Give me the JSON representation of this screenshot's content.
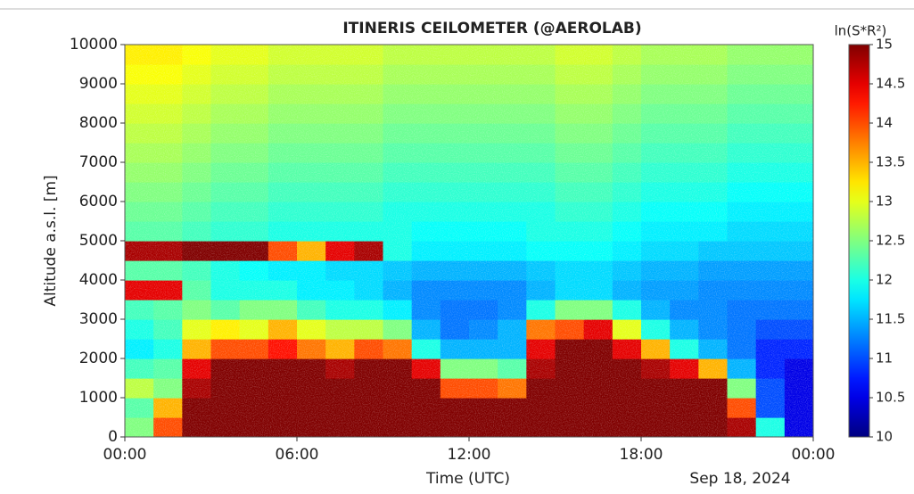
{
  "chart_data": {
    "type": "heatmap",
    "title": "ITINERIS CEILOMETER (@AEROLAB)",
    "x_label": "Time (UTC)",
    "y_label": "Altitude a.s.l. [m]",
    "annotation": "Sep 18, 2024",
    "colorbar_label": "ln(S*R²)",
    "colormap": "jet",
    "clim": [
      10,
      15
    ],
    "cticks": [
      10,
      10.5,
      11,
      11.5,
      12,
      12.5,
      13,
      13.5,
      14,
      14.5,
      15
    ],
    "xlim": [
      0,
      24
    ],
    "xticks": [
      {
        "value": 0,
        "label": "00:00"
      },
      {
        "value": 6,
        "label": "06:00"
      },
      {
        "value": 12,
        "label": "12:00"
      },
      {
        "value": 18,
        "label": "18:00"
      },
      {
        "value": 24,
        "label": "00:00"
      }
    ],
    "ylim": [
      0,
      10000
    ],
    "yticks": [
      0,
      1000,
      2000,
      3000,
      4000,
      5000,
      6000,
      7000,
      8000,
      9000,
      10000
    ],
    "x": [
      0.5,
      1.5,
      2.5,
      3.5,
      4.5,
      5.5,
      6.5,
      7.5,
      8.5,
      9.5,
      10.5,
      11.5,
      12.5,
      13.5,
      14.5,
      15.5,
      16.5,
      17.5,
      18.5,
      19.5,
      20.5,
      21.5,
      22.5,
      23.5
    ],
    "y": [
      250,
      750,
      1250,
      1750,
      2250,
      2750,
      3250,
      3750,
      4250,
      4750,
      5250,
      5750,
      6250,
      6750,
      7250,
      7750,
      8250,
      8750,
      9250,
      9750
    ],
    "z": [
      [
        12.5,
        14,
        15,
        15,
        15,
        15,
        15,
        15,
        15,
        15,
        15,
        15,
        15,
        15,
        15,
        15,
        15,
        15,
        15,
        15,
        15,
        14.8,
        12,
        10.5
      ],
      [
        12.3,
        13.5,
        15,
        15,
        15,
        15,
        15,
        15,
        15,
        15,
        15,
        15,
        15,
        15,
        15,
        15,
        15,
        15,
        15,
        15,
        15,
        14,
        11,
        10.5
      ],
      [
        12.8,
        12.5,
        14.8,
        15,
        15,
        15,
        15,
        15,
        15,
        15,
        15,
        14,
        14,
        13.8,
        15,
        15,
        15,
        15,
        15,
        15,
        15,
        12.5,
        11,
        10.5
      ],
      [
        12.2,
        12.3,
        14.5,
        15,
        15,
        15,
        15,
        14.8,
        15,
        15,
        14.5,
        12.5,
        12.5,
        12.3,
        14.8,
        15,
        15,
        15,
        14.8,
        14.5,
        13.5,
        11.5,
        10.8,
        10.5
      ],
      [
        11.8,
        12,
        13.5,
        14,
        14,
        14.3,
        13.8,
        13.5,
        14,
        13.8,
        12,
        11.5,
        11.5,
        11.5,
        14.5,
        15,
        15,
        14.5,
        13.5,
        12,
        11.5,
        11.2,
        10.8,
        10.8
      ],
      [
        12,
        12.2,
        13,
        13.2,
        13,
        13.5,
        13,
        12.8,
        12.8,
        12.5,
        11.5,
        11.2,
        11.3,
        11.5,
        13.8,
        14,
        14.5,
        13,
        12,
        11.5,
        11.3,
        11.2,
        11,
        11
      ],
      [
        12.2,
        12.3,
        12.5,
        12.3,
        12.5,
        12.5,
        12.2,
        12,
        12,
        11.8,
        11.3,
        11.2,
        11.2,
        11.3,
        12,
        12.5,
        12.5,
        12,
        11.5,
        11.3,
        11.3,
        11.2,
        11.2,
        11.2
      ],
      [
        14.5,
        14.5,
        12.3,
        12,
        12,
        12,
        11.8,
        11.8,
        11.7,
        11.5,
        11.3,
        11.3,
        11.3,
        11.3,
        11.5,
        11.7,
        11.7,
        11.5,
        11.4,
        11.4,
        11.3,
        11.3,
        11.3,
        11.3
      ],
      [
        12.3,
        12.3,
        12.2,
        12,
        11.9,
        11.8,
        11.8,
        11.7,
        11.7,
        11.6,
        11.5,
        11.5,
        11.5,
        11.5,
        11.6,
        11.7,
        11.7,
        11.6,
        11.5,
        11.5,
        11.4,
        11.4,
        11.4,
        11.4
      ],
      [
        14.8,
        14.8,
        15,
        15,
        15,
        14,
        13.5,
        14.5,
        14.8,
        12,
        11.8,
        11.8,
        11.8,
        11.8,
        11.9,
        11.9,
        11.9,
        11.8,
        11.7,
        11.7,
        11.6,
        11.6,
        11.6,
        11.6
      ],
      [
        12.3,
        12.3,
        12.2,
        12.1,
        12.1,
        12,
        12,
        12,
        12,
        12,
        11.9,
        11.9,
        11.9,
        11.9,
        12,
        12,
        12,
        11.9,
        11.8,
        11.8,
        11.8,
        11.7,
        11.7,
        11.7
      ],
      [
        12.4,
        12.4,
        12.3,
        12.2,
        12.2,
        12.1,
        12.1,
        12.1,
        12.1,
        12,
        12,
        12,
        12,
        12,
        12,
        12.1,
        12.1,
        12,
        11.9,
        11.9,
        11.9,
        11.8,
        11.8,
        11.8
      ],
      [
        12.5,
        12.5,
        12.4,
        12.3,
        12.3,
        12.2,
        12.2,
        12.2,
        12.2,
        12.1,
        12.1,
        12.1,
        12.1,
        12.1,
        12.1,
        12.2,
        12.2,
        12.1,
        12,
        12,
        12,
        11.9,
        11.9,
        11.9
      ],
      [
        12.6,
        12.6,
        12.5,
        12.4,
        12.4,
        12.3,
        12.3,
        12.3,
        12.3,
        12.2,
        12.2,
        12.2,
        12.2,
        12.2,
        12.2,
        12.3,
        12.3,
        12.2,
        12.1,
        12.1,
        12.1,
        12,
        12,
        12
      ],
      [
        12.7,
        12.7,
        12.6,
        12.5,
        12.5,
        12.4,
        12.4,
        12.4,
        12.4,
        12.3,
        12.3,
        12.3,
        12.3,
        12.3,
        12.3,
        12.4,
        12.4,
        12.3,
        12.2,
        12.2,
        12.2,
        12.1,
        12.1,
        12.1
      ],
      [
        12.8,
        12.8,
        12.7,
        12.6,
        12.6,
        12.5,
        12.5,
        12.5,
        12.5,
        12.4,
        12.4,
        12.4,
        12.4,
        12.4,
        12.4,
        12.5,
        12.5,
        12.4,
        12.3,
        12.3,
        12.3,
        12.2,
        12.2,
        12.2
      ],
      [
        12.9,
        12.9,
        12.8,
        12.7,
        12.7,
        12.6,
        12.6,
        12.6,
        12.6,
        12.5,
        12.5,
        12.5,
        12.5,
        12.5,
        12.5,
        12.6,
        12.6,
        12.5,
        12.4,
        12.4,
        12.4,
        12.3,
        12.3,
        12.3
      ],
      [
        13,
        13,
        12.9,
        12.8,
        12.8,
        12.7,
        12.7,
        12.7,
        12.7,
        12.6,
        12.6,
        12.6,
        12.6,
        12.6,
        12.6,
        12.7,
        12.7,
        12.6,
        12.5,
        12.5,
        12.5,
        12.4,
        12.4,
        12.4
      ],
      [
        13.1,
        13.1,
        13,
        12.9,
        12.9,
        12.8,
        12.8,
        12.8,
        12.8,
        12.7,
        12.7,
        12.7,
        12.7,
        12.7,
        12.7,
        12.8,
        12.8,
        12.7,
        12.6,
        12.6,
        12.6,
        12.5,
        12.5,
        12.5
      ],
      [
        13.2,
        13.2,
        13.1,
        13,
        13,
        12.9,
        12.9,
        12.9,
        12.9,
        12.8,
        12.8,
        12.8,
        12.8,
        12.8,
        12.8,
        12.9,
        12.9,
        12.8,
        12.7,
        12.7,
        12.7,
        12.6,
        12.6,
        12.6
      ]
    ]
  }
}
